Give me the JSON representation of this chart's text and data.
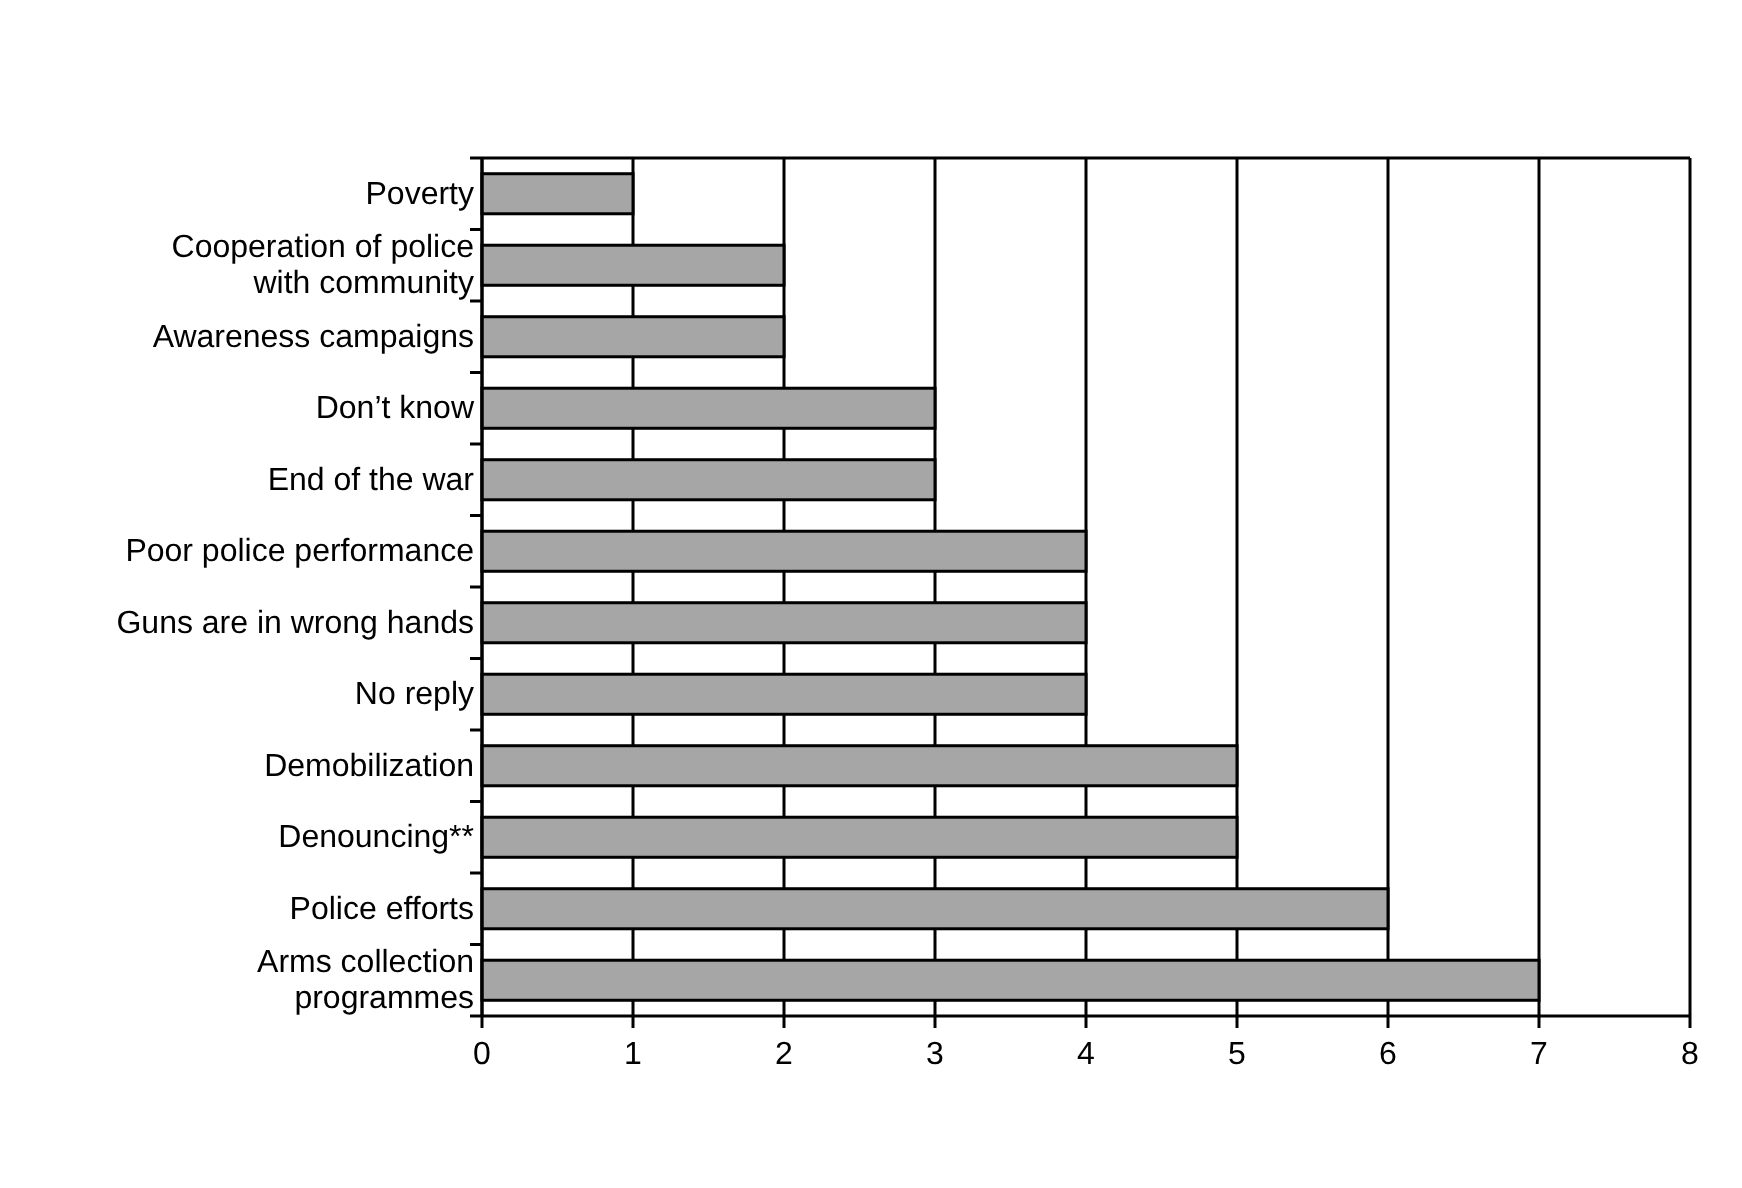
{
  "chart_data": {
    "type": "bar",
    "orientation": "horizontal",
    "categories": [
      "Poverty",
      "Cooperation of police with community",
      "Awareness campaigns",
      "Don’t know",
      "End of the war",
      "Poor police performance",
      "Guns are in wrong hands",
      "No reply",
      "Demobilization",
      "Denouncing**",
      "Police efforts",
      "Arms collection programmes"
    ],
    "values": [
      1,
      2,
      2,
      3,
      3,
      4,
      4,
      4,
      5,
      5,
      6,
      7
    ],
    "color": "#a6a6a6",
    "xlim": [
      0,
      8
    ],
    "xticks": [
      0,
      1,
      2,
      3,
      4,
      5,
      6,
      7,
      8
    ],
    "grid": "x"
  }
}
